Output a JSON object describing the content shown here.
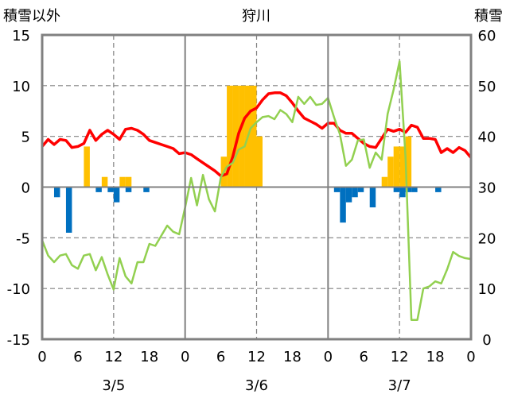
{
  "chart_data": {
    "type": "bar",
    "title": "狩川",
    "left_axis_label": "積雪以外",
    "right_axis_label": "積雪",
    "left_ylim": [
      -15,
      15
    ],
    "left_yticks": [
      -15,
      -10,
      -5,
      0,
      5,
      10,
      15
    ],
    "right_ylim": [
      0,
      60
    ],
    "right_yticks": [
      0,
      10,
      20,
      30,
      40,
      50,
      60
    ],
    "xlim": [
      0,
      72
    ],
    "xticks": [
      {
        "x": 0,
        "label": "0"
      },
      {
        "x": 6,
        "label": "6"
      },
      {
        "x": 12,
        "label": "12"
      },
      {
        "x": 18,
        "label": "18"
      },
      {
        "x": 24,
        "label": "0"
      },
      {
        "x": 30,
        "label": "6"
      },
      {
        "x": 36,
        "label": "12"
      },
      {
        "x": 42,
        "label": "18"
      },
      {
        "x": 48,
        "label": "0"
      },
      {
        "x": 54,
        "label": "6"
      },
      {
        "x": 60,
        "label": "12"
      },
      {
        "x": 66,
        "label": "18"
      },
      {
        "x": 72,
        "label": "0"
      }
    ],
    "day_labels": [
      {
        "x": 12,
        "label": "3/5"
      },
      {
        "x": 36,
        "label": "3/6"
      },
      {
        "x": 60,
        "label": "3/7"
      }
    ],
    "grid": true,
    "series": [
      {
        "kind": "bar",
        "axis": "left",
        "color": "#ffc000",
        "points": [
          [
            8,
            4
          ],
          [
            11,
            1
          ],
          [
            14,
            1
          ],
          [
            15,
            1
          ],
          [
            31,
            3
          ],
          [
            32,
            10
          ],
          [
            33,
            10
          ],
          [
            34,
            10
          ],
          [
            35,
            10
          ],
          [
            36,
            10
          ],
          [
            37,
            5
          ],
          [
            58,
            1
          ],
          [
            59,
            3
          ],
          [
            60,
            4
          ],
          [
            61,
            4
          ],
          [
            62,
            5
          ]
        ]
      },
      {
        "kind": "bar",
        "axis": "left",
        "color": "#0070c0",
        "points": [
          [
            3,
            -1
          ],
          [
            5,
            -4.5
          ],
          [
            10,
            -0.5
          ],
          [
            12,
            -0.5
          ],
          [
            13,
            -1.5
          ],
          [
            15,
            -0.5
          ],
          [
            18,
            -0.5
          ],
          [
            50,
            -0.5
          ],
          [
            51,
            -3.5
          ],
          [
            52,
            -1.5
          ],
          [
            53,
            -1
          ],
          [
            54,
            -0.5
          ],
          [
            56,
            -2
          ],
          [
            60,
            -0.5
          ],
          [
            61,
            -1
          ],
          [
            62,
            -0.5
          ],
          [
            63,
            -0.5
          ],
          [
            67,
            -0.5
          ]
        ]
      },
      {
        "kind": "line",
        "axis": "left",
        "color": "#ff0000",
        "points": [
          [
            0,
            4
          ],
          [
            1,
            4.7
          ],
          [
            2,
            4.2
          ],
          [
            3,
            4.7
          ],
          [
            4,
            4.6
          ],
          [
            5,
            3.9
          ],
          [
            6,
            4
          ],
          [
            7,
            4.3
          ],
          [
            8,
            5.6
          ],
          [
            9,
            4.6
          ],
          [
            10,
            5.2
          ],
          [
            11,
            5.6
          ],
          [
            12,
            5.2
          ],
          [
            13,
            4.7
          ],
          [
            14,
            5.7
          ],
          [
            15,
            5.8
          ],
          [
            16,
            5.6
          ],
          [
            17,
            5.2
          ],
          [
            18,
            4.6
          ],
          [
            19,
            4.4
          ],
          [
            20,
            4.2
          ],
          [
            21,
            4
          ],
          [
            22,
            3.8
          ],
          [
            23,
            3.3
          ],
          [
            24,
            3.4
          ],
          [
            25,
            3.2
          ],
          [
            26,
            2.8
          ],
          [
            27,
            2.4
          ],
          [
            28,
            2
          ],
          [
            29,
            1.6
          ],
          [
            30,
            1.1
          ],
          [
            31,
            1.3
          ],
          [
            32,
            3
          ],
          [
            33,
            5.3
          ],
          [
            34,
            6.8
          ],
          [
            35,
            7.5
          ],
          [
            36,
            7.8
          ],
          [
            37,
            8.6
          ],
          [
            38,
            9.2
          ],
          [
            39,
            9.3
          ],
          [
            40,
            9.3
          ],
          [
            41,
            9
          ],
          [
            42,
            8.3
          ],
          [
            43,
            7.5
          ],
          [
            44,
            6.8
          ],
          [
            45,
            6.5
          ],
          [
            46,
            6.2
          ],
          [
            47,
            5.8
          ],
          [
            48,
            6.3
          ],
          [
            49,
            6.3
          ],
          [
            50,
            5.6
          ],
          [
            51,
            5.3
          ],
          [
            52,
            5.3
          ],
          [
            53,
            4.8
          ],
          [
            54,
            4.3
          ],
          [
            55,
            4
          ],
          [
            56,
            3.9
          ],
          [
            57,
            4.8
          ],
          [
            58,
            5.7
          ],
          [
            59,
            5.5
          ],
          [
            60,
            5.7
          ],
          [
            61,
            5.4
          ],
          [
            62,
            6.1
          ],
          [
            63,
            5.9
          ],
          [
            64,
            4.8
          ],
          [
            65,
            4.8
          ],
          [
            66,
            4.7
          ],
          [
            67,
            3.4
          ],
          [
            68,
            3.8
          ],
          [
            69,
            3.4
          ],
          [
            70,
            3.9
          ],
          [
            71,
            3.6
          ],
          [
            72,
            2.9
          ]
        ]
      },
      {
        "kind": "line",
        "axis": "right",
        "color": "#92d050",
        "points": [
          [
            0,
            19.5
          ],
          [
            1,
            16.5
          ],
          [
            2,
            15.2
          ],
          [
            3,
            16.5
          ],
          [
            4,
            16.8
          ],
          [
            5,
            14.6
          ],
          [
            6,
            13.9
          ],
          [
            7,
            16.5
          ],
          [
            8,
            16.8
          ],
          [
            9,
            13.6
          ],
          [
            10,
            16.2
          ],
          [
            11,
            12.8
          ],
          [
            12,
            9.8
          ],
          [
            13,
            16
          ],
          [
            14,
            12.4
          ],
          [
            15,
            11
          ],
          [
            16,
            15.2
          ],
          [
            17,
            15.2
          ],
          [
            18,
            18.8
          ],
          [
            19,
            18.4
          ],
          [
            20,
            20.4
          ],
          [
            21,
            22.4
          ],
          [
            22,
            21.2
          ],
          [
            23,
            20.7
          ],
          [
            24,
            26
          ],
          [
            25,
            31.8
          ],
          [
            26,
            26.4
          ],
          [
            27,
            32.4
          ],
          [
            28,
            27.6
          ],
          [
            29,
            25.2
          ],
          [
            30,
            32
          ],
          [
            31,
            34
          ],
          [
            32,
            34.8
          ],
          [
            33,
            37.4
          ],
          [
            34,
            38
          ],
          [
            35,
            41.6
          ],
          [
            36,
            42.8
          ],
          [
            37,
            43.8
          ],
          [
            38,
            44
          ],
          [
            39,
            43.4
          ],
          [
            40,
            45.2
          ],
          [
            41,
            44.4
          ],
          [
            42,
            42.8
          ],
          [
            43,
            47.8
          ],
          [
            44,
            46.4
          ],
          [
            45,
            47.8
          ],
          [
            46,
            46.2
          ],
          [
            47,
            46.4
          ],
          [
            48,
            47.6
          ],
          [
            49,
            43.8
          ],
          [
            50,
            40.4
          ],
          [
            51,
            34.2
          ],
          [
            52,
            35.4
          ],
          [
            53,
            39.2
          ],
          [
            54,
            39.4
          ],
          [
            55,
            33.8
          ],
          [
            56,
            36.8
          ],
          [
            57,
            35.4
          ],
          [
            58,
            44.4
          ],
          [
            59,
            49.2
          ],
          [
            60,
            54.8
          ],
          [
            61,
            36
          ],
          [
            62,
            3.8
          ],
          [
            63,
            3.8
          ],
          [
            64,
            10
          ],
          [
            65,
            10.4
          ],
          [
            66,
            11.4
          ],
          [
            67,
            11
          ],
          [
            68,
            13.8
          ],
          [
            69,
            17.2
          ],
          [
            70,
            16.4
          ],
          [
            71,
            16
          ],
          [
            72,
            15.8
          ]
        ]
      },
      {
        "kind": "line",
        "axis": "right",
        "color": "#7030a0",
        "points": [
          [
            0,
            0
          ],
          [
            72,
            0
          ]
        ]
      }
    ]
  }
}
